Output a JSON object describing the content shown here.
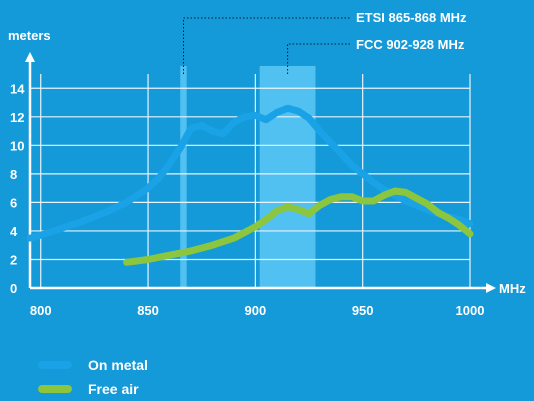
{
  "chart_data": {
    "type": "line",
    "ylabel": "meters",
    "xlabel": "MHz",
    "xlim": [
      795,
      1000
    ],
    "ylim": [
      0,
      15
    ],
    "x_ticks": [
      800,
      850,
      900,
      950,
      1000
    ],
    "y_ticks": [
      0,
      2,
      4,
      6,
      8,
      10,
      12,
      14
    ],
    "grid": true,
    "bands": [
      {
        "label": "ETSI 865-868 MHz",
        "from": 865,
        "to": 868
      },
      {
        "label": "FCC 902-928 MHz",
        "from": 902,
        "to": 928
      }
    ],
    "series": [
      {
        "name": "On metal",
        "color": "#19a3e6",
        "x": [
          795,
          800,
          810,
          820,
          830,
          840,
          845,
          850,
          855,
          860,
          865,
          870,
          875,
          880,
          885,
          890,
          895,
          900,
          905,
          910,
          915,
          920,
          925,
          930,
          935,
          940,
          945,
          950,
          955,
          960,
          965,
          970,
          975,
          980,
          985,
          990,
          995,
          1000
        ],
        "values": [
          3.5,
          3.7,
          4.2,
          4.7,
          5.3,
          6.0,
          6.5,
          7.0,
          7.7,
          8.7,
          9.8,
          11.2,
          11.4,
          11.0,
          10.8,
          11.6,
          12.0,
          12.1,
          11.8,
          12.3,
          12.6,
          12.4,
          11.9,
          11.0,
          10.2,
          9.4,
          8.6,
          8.0,
          7.4,
          6.9,
          6.5,
          6.1,
          5.8,
          5.5,
          5.2,
          5.0,
          4.8,
          4.5
        ]
      },
      {
        "name": "Free air",
        "color": "#8cc63f",
        "x": [
          840,
          850,
          860,
          870,
          880,
          890,
          900,
          905,
          910,
          915,
          920,
          925,
          930,
          935,
          940,
          945,
          950,
          955,
          960,
          965,
          970,
          975,
          980,
          985,
          990,
          995,
          1000
        ],
        "values": [
          1.8,
          2.0,
          2.3,
          2.6,
          3.0,
          3.5,
          4.3,
          4.8,
          5.4,
          5.7,
          5.5,
          5.2,
          5.8,
          6.2,
          6.4,
          6.4,
          6.1,
          6.1,
          6.5,
          6.8,
          6.7,
          6.3,
          5.9,
          5.3,
          4.9,
          4.4,
          3.8
        ]
      }
    ]
  },
  "legend": {
    "on_metal": "On metal",
    "free_air": "Free air"
  },
  "colors": {
    "background": "#1499d9",
    "band": "#5bc8f5",
    "grid": "#e8f4fb"
  }
}
